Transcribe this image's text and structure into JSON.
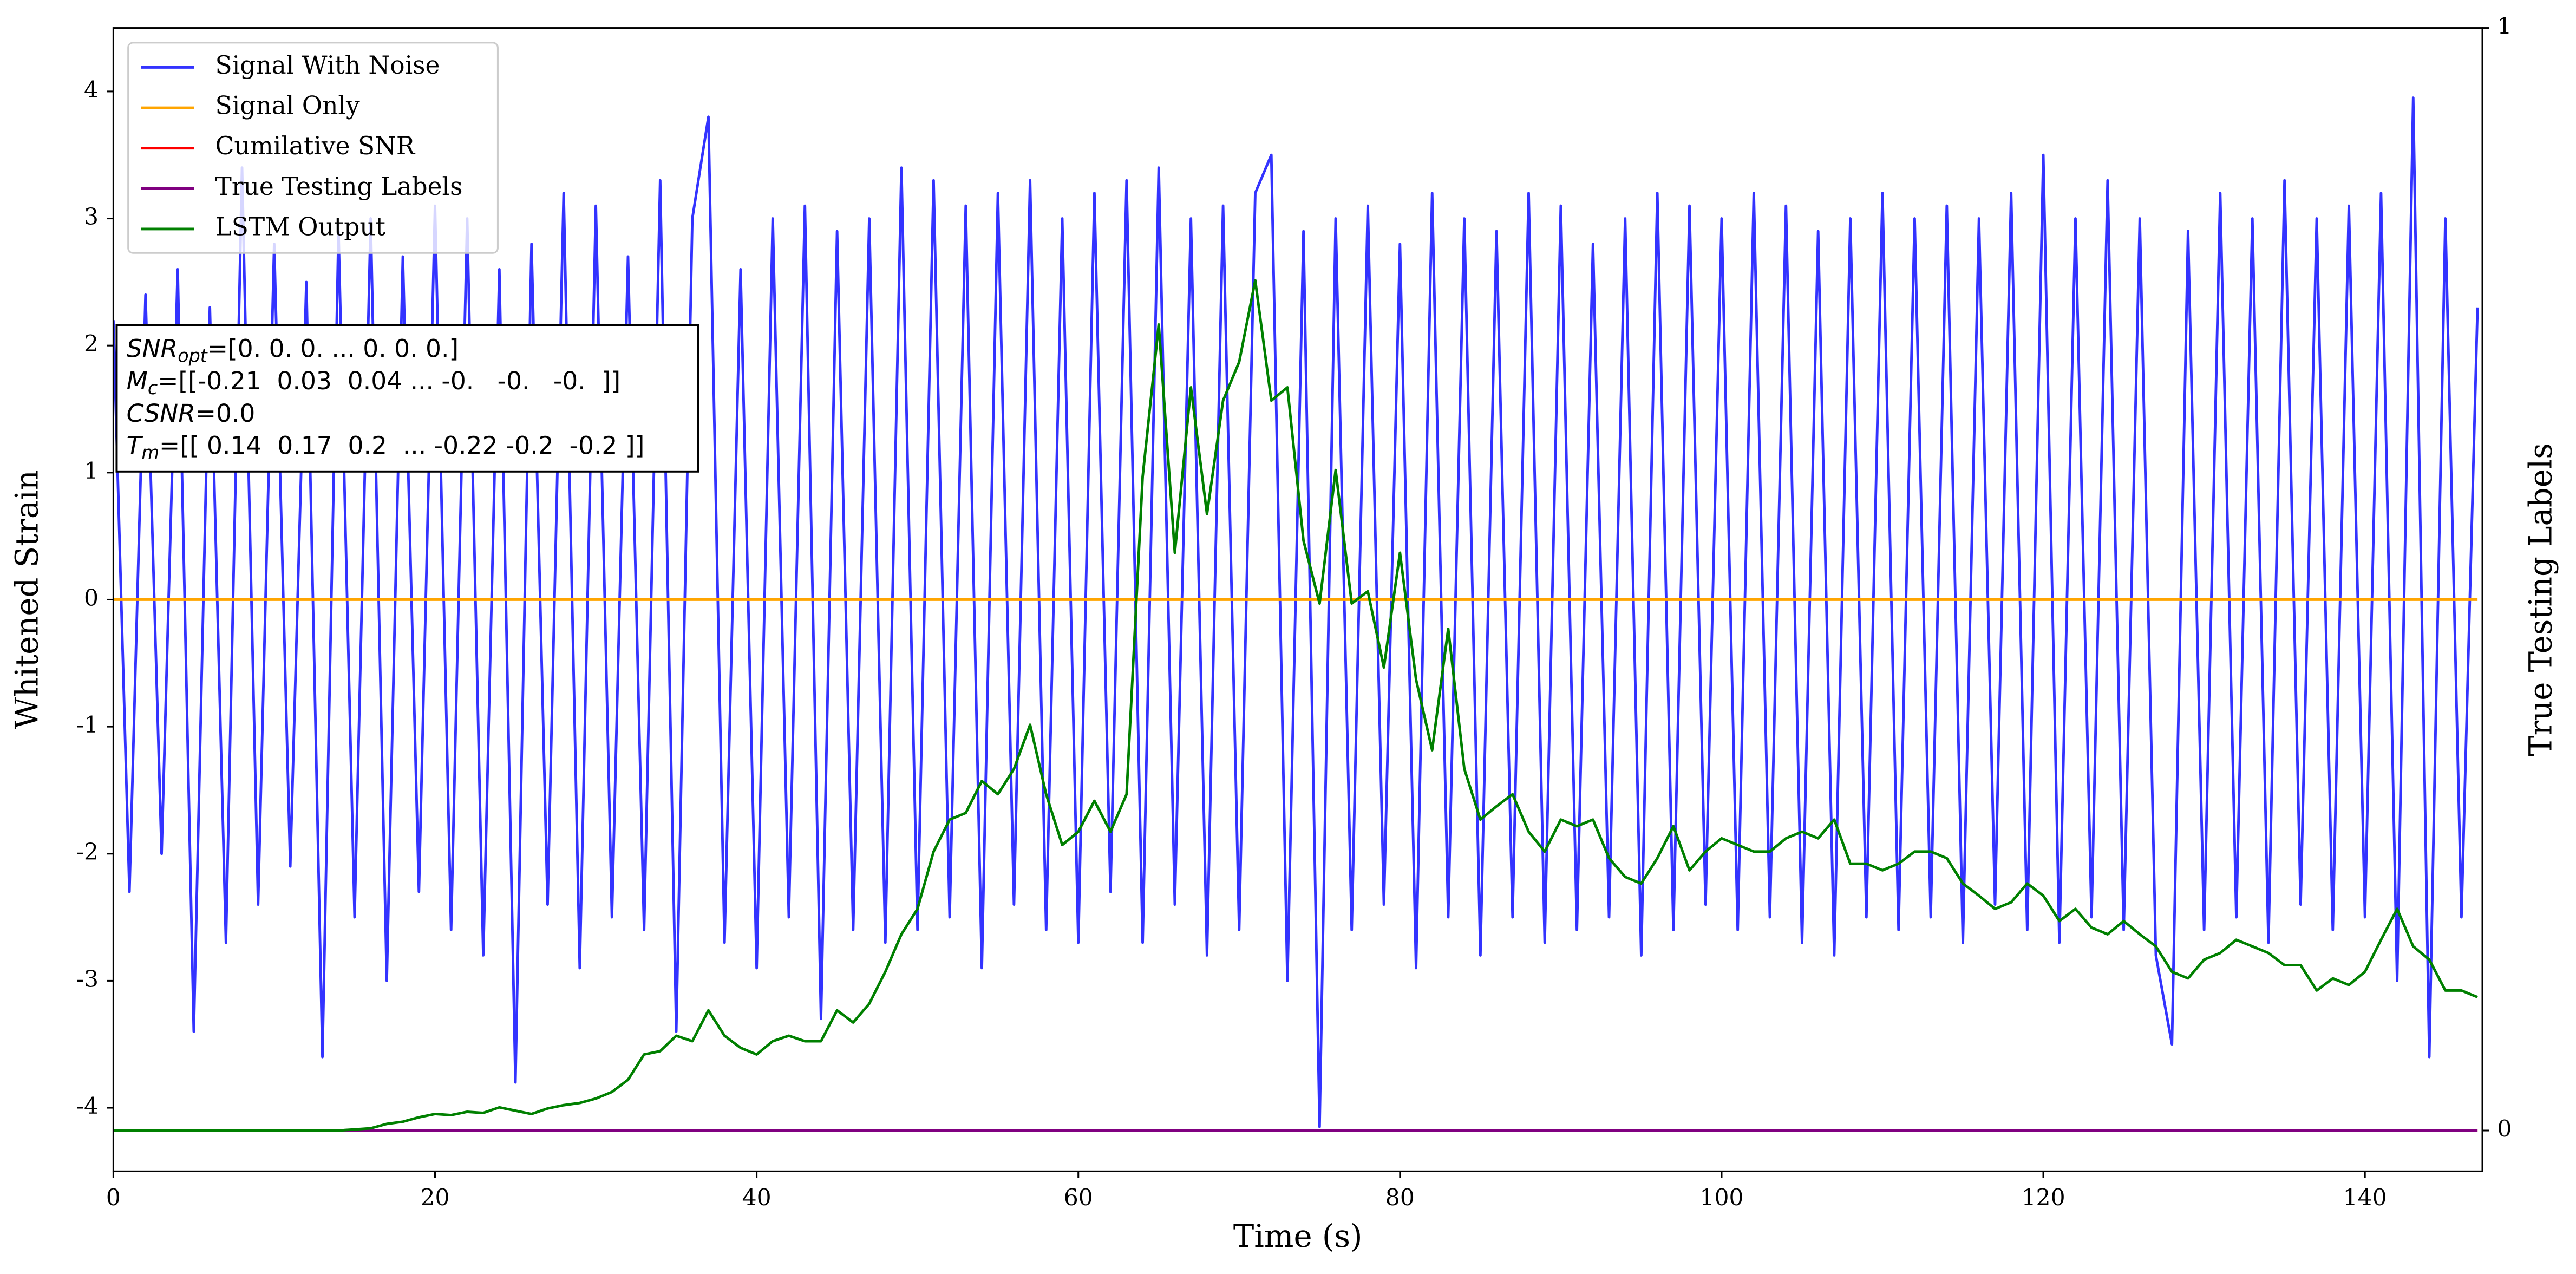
{
  "chart_data": {
    "type": "line",
    "xlabel": "Time (s)",
    "ylabel": "Whitened Strain",
    "y2label": "True Testing Labels",
    "xlim": [
      0,
      147.3
    ],
    "xticks": [
      0,
      20,
      40,
      60,
      80,
      100,
      120,
      140
    ],
    "ylim": [
      -4.5,
      4.5
    ],
    "yticks": [
      -4,
      -3,
      -2,
      -1,
      0,
      1,
      2,
      3,
      4
    ],
    "y2lim": [
      -0.037,
      1
    ],
    "y2ticks": [
      0,
      1
    ],
    "legend": "upper left",
    "x": [
      0,
      1,
      2,
      3,
      4,
      5,
      6,
      7,
      8,
      9,
      10,
      11,
      12,
      13,
      14,
      15,
      16,
      17,
      18,
      19,
      20,
      21,
      22,
      23,
      24,
      25,
      26,
      27,
      28,
      29,
      30,
      31,
      32,
      33,
      34,
      35,
      36,
      37,
      38,
      39,
      40,
      41,
      42,
      43,
      44,
      45,
      46,
      47,
      48,
      49,
      50,
      51,
      52,
      53,
      54,
      55,
      56,
      57,
      58,
      59,
      60,
      61,
      62,
      63,
      64,
      65,
      66,
      67,
      68,
      69,
      70,
      71,
      72,
      73,
      74,
      75,
      76,
      77,
      78,
      79,
      80,
      81,
      82,
      83,
      84,
      85,
      86,
      87,
      88,
      89,
      90,
      91,
      92,
      93,
      94,
      95,
      96,
      97,
      98,
      99,
      100,
      101,
      102,
      103,
      104,
      105,
      106,
      107,
      108,
      109,
      110,
      111,
      112,
      113,
      114,
      115,
      116,
      117,
      118,
      119,
      120,
      121,
      122,
      123,
      124,
      125,
      126,
      127,
      128,
      129,
      130,
      131,
      132,
      133,
      134,
      135,
      136,
      137,
      138,
      139,
      140,
      141,
      142,
      143,
      144,
      145,
      146,
      147
    ],
    "series": [
      {
        "name": "Signal With Noise",
        "color": "#3333ff",
        "values": [
          2.2,
          -2.3,
          2.4,
          -2.0,
          2.6,
          -3.4,
          2.3,
          -2.7,
          3.4,
          -2.4,
          2.8,
          -2.1,
          2.5,
          -3.6,
          2.9,
          -2.5,
          3.0,
          -3.0,
          2.7,
          -2.3,
          3.1,
          -2.6,
          3.0,
          -2.8,
          2.6,
          -3.8,
          2.8,
          -2.4,
          3.2,
          -2.9,
          3.1,
          -2.5,
          2.7,
          -2.6,
          3.3,
          -3.4,
          3.0,
          3.8,
          -2.7,
          2.6,
          -2.9,
          3.0,
          -2.5,
          3.1,
          -3.3,
          2.9,
          -2.6,
          3.0,
          -2.7,
          3.4,
          -2.6,
          3.3,
          -2.5,
          3.1,
          -2.9,
          3.2,
          -2.4,
          3.3,
          -2.6,
          3.0,
          -2.7,
          3.2,
          -2.3,
          3.3,
          -2.7,
          3.4,
          -2.4,
          3.0,
          -2.8,
          3.1,
          -2.6,
          3.2,
          3.5,
          -3.0,
          2.9,
          -4.15,
          3.0,
          -2.6,
          3.1,
          -2.4,
          2.8,
          -2.9,
          3.2,
          -2.5,
          3.0,
          -2.8,
          2.9,
          -2.5,
          3.2,
          -2.7,
          3.1,
          -2.6,
          2.8,
          -2.5,
          3.0,
          -2.8,
          3.2,
          -2.6,
          3.1,
          -2.4,
          3.0,
          -2.6,
          3.2,
          -2.5,
          3.1,
          -2.7,
          2.9,
          -2.8,
          3.0,
          -2.5,
          3.2,
          -2.6,
          3.0,
          -2.5,
          3.1,
          -2.7,
          3.0,
          -2.4,
          3.2,
          -2.6,
          3.5,
          -2.7,
          3.0,
          -2.5,
          3.3,
          -2.6,
          3.0,
          -2.8,
          -3.5,
          2.9,
          -2.6,
          3.2,
          -2.5,
          3.0,
          -2.7,
          3.3,
          -2.4,
          3.0,
          -2.6,
          3.1,
          -2.5,
          3.2,
          -3.0,
          3.95,
          -3.6,
          3.0,
          -2.5,
          2.3
        ]
      },
      {
        "name": "Signal Only",
        "color": "#ffa500",
        "values": [
          0,
          0,
          0,
          0,
          0,
          0,
          0,
          0,
          0,
          0,
          0,
          0,
          0,
          0,
          0,
          0,
          0,
          0,
          0,
          0,
          0,
          0,
          0,
          0,
          0,
          0,
          0,
          0,
          0,
          0,
          0,
          0,
          0,
          0,
          0,
          0,
          0,
          0,
          0,
          0,
          0,
          0,
          0,
          0,
          0,
          0,
          0,
          0,
          0,
          0,
          0,
          0,
          0,
          0,
          0,
          0,
          0,
          0,
          0,
          0,
          0,
          0,
          0,
          0,
          0,
          0,
          0,
          0,
          0,
          0,
          0,
          0,
          0,
          0,
          0,
          0,
          0,
          0,
          0,
          0,
          0,
          0,
          0,
          0,
          0,
          0,
          0,
          0,
          0,
          0,
          0,
          0,
          0,
          0,
          0,
          0,
          0,
          0,
          0,
          0,
          0,
          0,
          0,
          0,
          0,
          0,
          0,
          0,
          0,
          0,
          0,
          0,
          0,
          0,
          0,
          0,
          0,
          0,
          0,
          0,
          0,
          0,
          0,
          0,
          0,
          0,
          0,
          0,
          0,
          0,
          0,
          0,
          0,
          0,
          0,
          0,
          0,
          0,
          0,
          0,
          0,
          0,
          0,
          0,
          0,
          0,
          0,
          0
        ]
      },
      {
        "name": "Cumilative SNR",
        "color": "#ff0000",
        "axis": "y2",
        "values": [
          0,
          0,
          0,
          0,
          0,
          0,
          0,
          0,
          0,
          0,
          0,
          0,
          0,
          0,
          0,
          0,
          0,
          0,
          0,
          0,
          0,
          0,
          0,
          0,
          0,
          0,
          0,
          0,
          0,
          0,
          0,
          0,
          0,
          0,
          0,
          0,
          0,
          0,
          0,
          0,
          0,
          0,
          0,
          0,
          0,
          0,
          0,
          0,
          0,
          0,
          0,
          0,
          0,
          0,
          0,
          0,
          0,
          0,
          0,
          0,
          0,
          0,
          0,
          0,
          0,
          0,
          0,
          0,
          0,
          0,
          0,
          0,
          0,
          0,
          0,
          0,
          0,
          0,
          0,
          0,
          0,
          0,
          0,
          0,
          0,
          0,
          0,
          0,
          0,
          0,
          0,
          0,
          0,
          0,
          0,
          0,
          0,
          0,
          0,
          0,
          0,
          0,
          0,
          0,
          0,
          0,
          0,
          0,
          0,
          0,
          0,
          0,
          0,
          0,
          0,
          0,
          0,
          0,
          0,
          0,
          0,
          0,
          0,
          0,
          0,
          0,
          0,
          0,
          0,
          0,
          0,
          0,
          0,
          0,
          0,
          0,
          0,
          0,
          0,
          0,
          0,
          0,
          0,
          0,
          0,
          0,
          0,
          0
        ]
      },
      {
        "name": "True Testing Labels",
        "color": "#800080",
        "axis": "y2",
        "values": [
          0,
          0,
          0,
          0,
          0,
          0,
          0,
          0,
          0,
          0,
          0,
          0,
          0,
          0,
          0,
          0,
          0,
          0,
          0,
          0,
          0,
          0,
          0,
          0,
          0,
          0,
          0,
          0,
          0,
          0,
          0,
          0,
          0,
          0,
          0,
          0,
          0,
          0,
          0,
          0,
          0,
          0,
          0,
          0,
          0,
          0,
          0,
          0,
          0,
          0,
          0,
          0,
          0,
          0,
          0,
          0,
          0,
          0,
          0,
          0,
          0,
          0,
          0,
          0,
          0,
          0,
          0,
          0,
          0,
          0,
          0,
          0,
          0,
          0,
          0,
          0,
          0,
          0,
          0,
          0,
          0,
          0,
          0,
          0,
          0,
          0,
          0,
          0,
          0,
          0,
          0,
          0,
          0,
          0,
          0,
          0,
          0,
          0,
          0,
          0,
          0,
          0,
          0,
          0,
          0,
          0,
          0,
          0,
          0,
          0,
          0,
          0,
          0,
          0,
          0,
          0,
          0,
          0,
          0,
          0,
          0,
          0,
          0,
          0,
          0,
          0,
          0,
          0,
          0,
          0,
          0,
          0,
          0,
          0,
          0,
          0,
          0,
          0,
          0,
          0,
          0,
          0,
          0,
          0,
          0,
          0,
          0,
          0
        ]
      },
      {
        "name": "LSTM Output",
        "color": "#008000",
        "axis": "y2",
        "values": [
          0,
          0,
          0,
          0,
          0,
          0,
          0,
          0,
          0,
          0,
          0,
          0,
          0,
          0,
          0,
          0.001,
          0.002,
          0.006,
          0.008,
          0.012,
          0.015,
          0.014,
          0.017,
          0.016,
          0.021,
          0.018,
          0.015,
          0.02,
          0.023,
          0.025,
          0.029,
          0.035,
          0.046,
          0.069,
          0.072,
          0.086,
          0.081,
          0.109,
          0.086,
          0.075,
          0.069,
          0.081,
          0.086,
          0.081,
          0.081,
          0.109,
          0.098,
          0.115,
          0.144,
          0.178,
          0.201,
          0.253,
          0.282,
          0.288,
          0.317,
          0.305,
          0.328,
          0.368,
          0.305,
          0.259,
          0.271,
          0.299,
          0.271,
          0.305,
          0.593,
          0.731,
          0.524,
          0.674,
          0.559,
          0.662,
          0.697,
          0.771,
          0.662,
          0.674,
          0.535,
          0.478,
          0.599,
          0.478,
          0.489,
          0.42,
          0.524,
          0.409,
          0.345,
          0.455,
          0.328,
          0.282,
          0.294,
          0.305,
          0.271,
          0.253,
          0.282,
          0.276,
          0.282,
          0.247,
          0.23,
          0.224,
          0.247,
          0.276,
          0.236,
          0.253,
          0.265,
          0.259,
          0.253,
          0.253,
          0.265,
          0.271,
          0.265,
          0.282,
          0.242,
          0.242,
          0.236,
          0.242,
          0.253,
          0.253,
          0.247,
          0.224,
          0.213,
          0.201,
          0.207,
          0.224,
          0.213,
          0.19,
          0.201,
          0.184,
          0.178,
          0.19,
          0.178,
          0.167,
          0.144,
          0.138,
          0.155,
          0.161,
          0.173,
          0.167,
          0.161,
          0.15,
          0.15,
          0.127,
          0.138,
          0.132,
          0.144,
          0.173,
          0.201,
          0.167,
          0.155,
          0.127,
          0.127,
          0.121
        ]
      }
    ],
    "annotation": [
      {
        "symbol": "SNR",
        "subscript": "opt",
        "text": "=[0. 0. 0. ... 0. 0. 0.]"
      },
      {
        "symbol": "M",
        "subscript": "c",
        "text": "=[[-0.21  0.03  0.04 ... -0.   -0.   -0.  ]]"
      },
      {
        "symbol": "CSNR",
        "text": "=0.0"
      },
      {
        "symbol": "T",
        "subscript": "m",
        "text": "=[[ 0.14  0.17  0.2  ... -0.22 -0.2  -0.2 ]]"
      }
    ]
  }
}
